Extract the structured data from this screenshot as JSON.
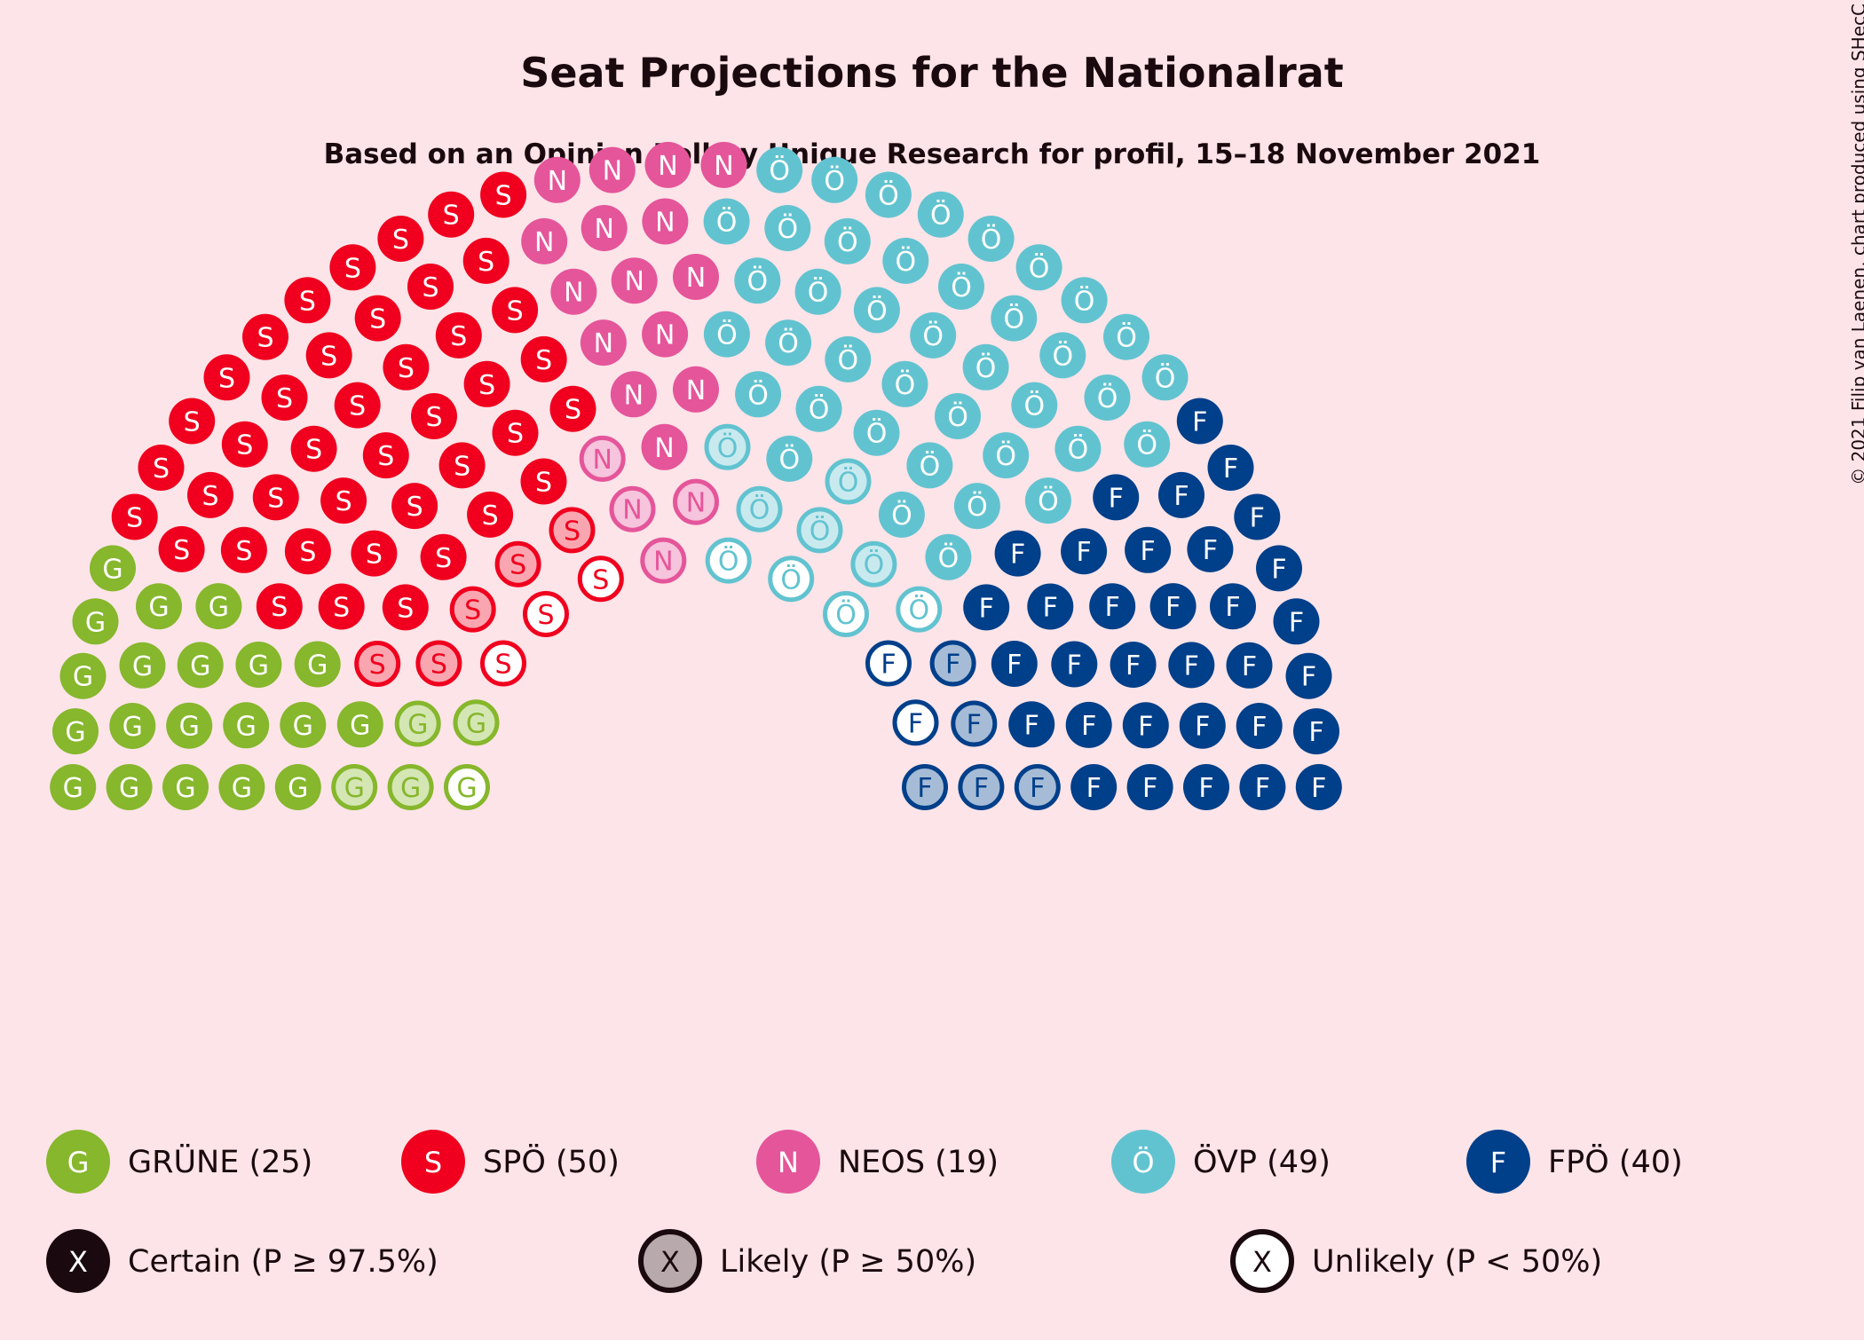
{
  "chart_data": {
    "type": "parliament",
    "title": "Seat Projections for the Nationalrat",
    "subtitle": "Based on an Opinion Poll by Unique Research for profil, 15–18 November 2021",
    "copyright": "© 2021 Filip van Laenen, chart produced using SHecC",
    "total_seats": 183,
    "parties": [
      {
        "letter": "G",
        "name": "GRÜNE",
        "seats": 25,
        "certain": 20,
        "likely": 4,
        "unlikely": 1,
        "color": "#86b72c",
        "legend": "GRÜNE (25)"
      },
      {
        "letter": "S",
        "name": "SPÖ",
        "seats": 50,
        "certain": 42,
        "likely": 5,
        "unlikely": 3,
        "color": "#f0001e",
        "legend": "SPÖ (50)"
      },
      {
        "letter": "N",
        "name": "NEOS",
        "seats": 19,
        "certain": 15,
        "likely": 4,
        "unlikely": 0,
        "color": "#e5559a",
        "legend": "NEOS (19)"
      },
      {
        "letter": "Ö",
        "name": "ÖVP",
        "seats": 49,
        "certain": 40,
        "likely": 5,
        "unlikely": 4,
        "color": "#62c3d0",
        "legend": "ÖVP (49)"
      },
      {
        "letter": "F",
        "name": "FPÖ",
        "seats": 40,
        "certain": 33,
        "likely": 5,
        "unlikely": 2,
        "color": "#003f8a",
        "legend": "FPÖ (40)"
      }
    ],
    "certainty_legend": [
      {
        "key": "certain",
        "label": "Certain (P ≥ 97.5%)"
      },
      {
        "key": "likely",
        "label": "Likely (P ≥ 50%)"
      },
      {
        "key": "unlikely",
        "label": "Unlikely (P < 50%)"
      }
    ],
    "legend_symbol": "X",
    "ink_color": "#1a0a0f"
  }
}
